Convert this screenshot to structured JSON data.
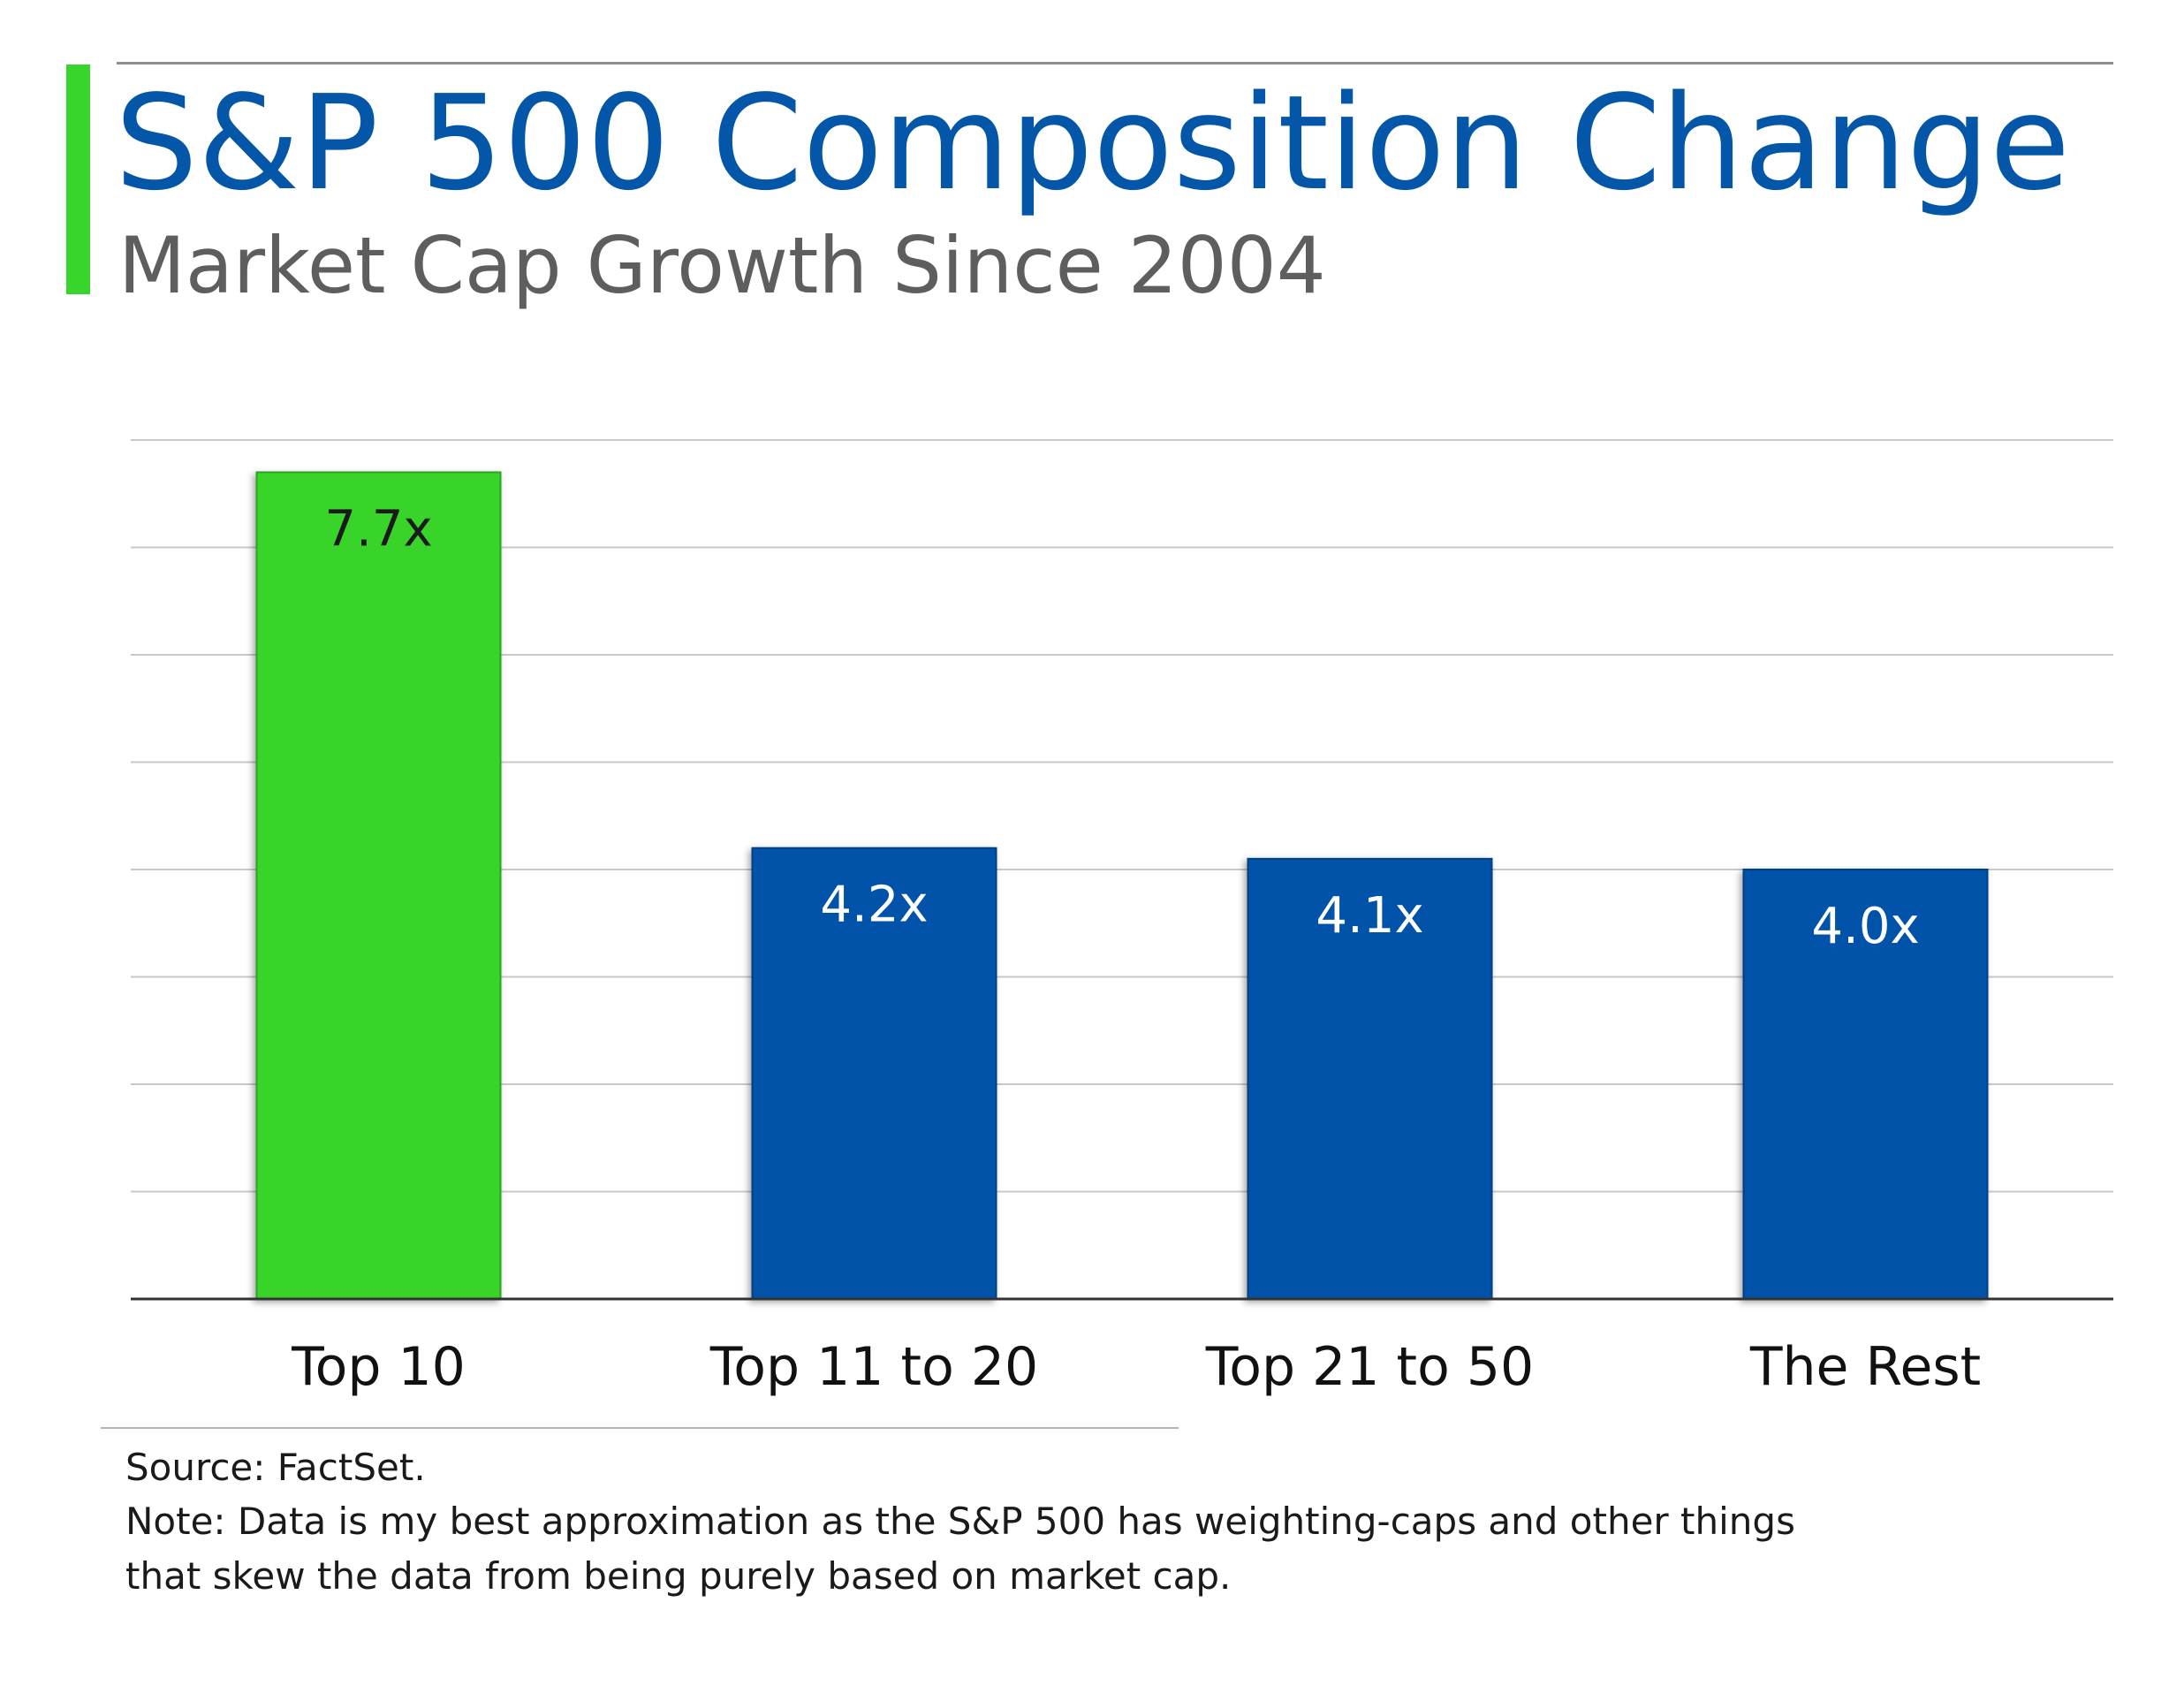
{
  "header": {
    "title": "S&P 500 Composition Change",
    "subtitle": "Market Cap Growth Since 2004"
  },
  "chart_data": {
    "type": "bar",
    "title": "S&P 500 Composition Change",
    "subtitle": "Market Cap Growth Since 2004",
    "categories": [
      "Top 10",
      "Top 11 to 20",
      "Top 21 to 50",
      "The Rest"
    ],
    "values": [
      7.7,
      4.2,
      4.1,
      4.0
    ],
    "data_labels": [
      "7.7x",
      "4.2x",
      "4.1x",
      "4.0x"
    ],
    "value_suffix": "x",
    "ylim": [
      0,
      8
    ],
    "y_gridline_step": 1,
    "y_tick_labels_shown": false,
    "grid": true,
    "legend": "none",
    "colors": [
      "#39d42c",
      "#0152a9",
      "#0152a9",
      "#0152a9"
    ],
    "gridline_color": "#c9c9c9",
    "axis_color": "#333333",
    "xlabel": "",
    "ylabel": ""
  },
  "colors": {
    "title": "#0456a8",
    "subtitle": "#5e5e5e",
    "accent": "#39d42c",
    "bar_primary": "#0152a9",
    "bar_highlight": "#39d42c"
  },
  "footer": {
    "source": "Source: FactSet.",
    "note_line1": "Note: Data is my best approximation as the S&P 500 has weighting-caps and other things",
    "note_line2": "that skew the data from being purely based on market cap."
  }
}
